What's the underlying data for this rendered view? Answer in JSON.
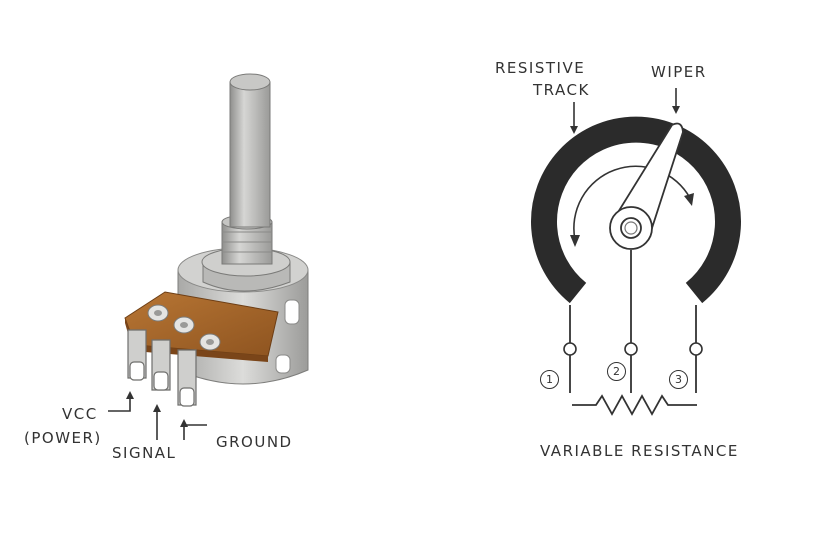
{
  "left_labels": {
    "vcc": "VCC",
    "power": "(POWER)",
    "signal": "SIGNAL",
    "ground": "GROUND"
  },
  "right_labels": {
    "resistive": "RESISTIVE",
    "track": "TRACK",
    "wiper": "WIPER",
    "caption": "VARIABLE RESISTANCE"
  },
  "pins": [
    "1",
    "2",
    "3"
  ],
  "colors": {
    "shaft": "#b3b3b1",
    "body": "#c9c9c7",
    "board": "#a4652a",
    "track": "#2b2b2b",
    "ink": "#333333"
  }
}
